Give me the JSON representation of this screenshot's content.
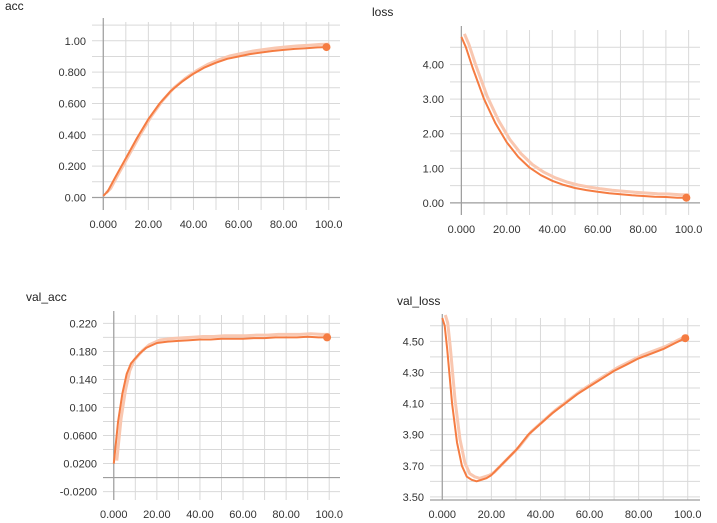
{
  "colors": {
    "line": "#f57c42",
    "raw": "#f9c7b0",
    "grid": "#d9d9d9",
    "axis": "#9e9e9e"
  },
  "chart_data": [
    {
      "type": "line",
      "title": "acc",
      "xlim": [
        -5,
        105
      ],
      "ylim": [
        -0.08,
        1.12
      ],
      "xticks": [
        0,
        20,
        40,
        60,
        80,
        100
      ],
      "xtick_labels": [
        "0.000",
        "20.00",
        "40.00",
        "60.00",
        "80.00",
        "100.0"
      ],
      "yticks": [
        0,
        0.2,
        0.4,
        0.6,
        0.8,
        1.0
      ],
      "ytick_labels": [
        "0.00",
        "0.200",
        "0.400",
        "0.600",
        "0.800",
        "1.00"
      ],
      "grid": true,
      "series": [
        {
          "x": [
            0,
            2,
            5,
            10,
            15,
            20,
            25,
            30,
            35,
            40,
            45,
            50,
            55,
            60,
            65,
            70,
            75,
            80,
            85,
            90,
            95,
            99
          ],
          "y": [
            0.01,
            0.04,
            0.12,
            0.25,
            0.38,
            0.5,
            0.6,
            0.68,
            0.74,
            0.79,
            0.83,
            0.86,
            0.885,
            0.9,
            0.915,
            0.925,
            0.935,
            0.942,
            0.948,
            0.953,
            0.958,
            0.96
          ]
        }
      ]
    },
    {
      "type": "line",
      "title": "loss",
      "xlim": [
        -5,
        105
      ],
      "ylim": [
        -0.35,
        5.0
      ],
      "xticks": [
        0,
        20,
        40,
        60,
        80,
        100
      ],
      "xtick_labels": [
        "0.000",
        "20.00",
        "40.00",
        "60.00",
        "80.00",
        "100.0"
      ],
      "yticks": [
        0,
        1,
        2,
        3,
        4
      ],
      "ytick_labels": [
        "0.00",
        "1.00",
        "2.00",
        "3.00",
        "4.00"
      ],
      "grid": true,
      "series": [
        {
          "x": [
            0,
            2,
            5,
            10,
            15,
            20,
            25,
            30,
            35,
            40,
            45,
            50,
            55,
            60,
            65,
            70,
            75,
            80,
            85,
            90,
            95,
            99
          ],
          "y": [
            4.8,
            4.5,
            3.9,
            3.0,
            2.3,
            1.75,
            1.33,
            1.02,
            0.8,
            0.64,
            0.52,
            0.43,
            0.37,
            0.32,
            0.28,
            0.25,
            0.22,
            0.2,
            0.18,
            0.17,
            0.15,
            0.15
          ]
        }
      ]
    },
    {
      "type": "line",
      "title": "val_acc",
      "xlim": [
        -5,
        105
      ],
      "ylim": [
        -0.032,
        0.232
      ],
      "xticks": [
        0,
        20,
        40,
        60,
        80,
        100
      ],
      "xtick_labels": [
        "0.000",
        "20.00",
        "40.00",
        "60.00",
        "80.00",
        "100.0"
      ],
      "yticks": [
        -0.02,
        0.02,
        0.06,
        0.1,
        0.14,
        0.18,
        0.22
      ],
      "ytick_labels": [
        "-0.0200",
        "0.0200",
        "0.0600",
        "0.100",
        "0.140",
        "0.180",
        "0.220"
      ],
      "grid": true,
      "series": [
        {
          "x": [
            0,
            2,
            4,
            6,
            8,
            10,
            12,
            15,
            20,
            25,
            30,
            35,
            40,
            45,
            50,
            55,
            60,
            65,
            70,
            75,
            80,
            85,
            90,
            95,
            99
          ],
          "y": [
            0.02,
            0.08,
            0.12,
            0.148,
            0.163,
            0.17,
            0.177,
            0.185,
            0.192,
            0.194,
            0.195,
            0.196,
            0.197,
            0.197,
            0.198,
            0.198,
            0.198,
            0.199,
            0.199,
            0.2,
            0.2,
            0.2,
            0.201,
            0.2,
            0.2
          ]
        }
      ]
    },
    {
      "type": "line",
      "title": "val_loss",
      "xlim": [
        -5,
        105
      ],
      "ylim": [
        3.48,
        4.65
      ],
      "xticks": [
        0,
        20,
        40,
        60,
        80,
        100
      ],
      "xtick_labels": [
        "0.000",
        "20.00",
        "40.00",
        "60.00",
        "80.00",
        "100.0"
      ],
      "yticks": [
        3.5,
        3.7,
        3.9,
        4.1,
        4.3,
        4.5
      ],
      "ytick_labels": [
        "3.50",
        "3.70",
        "3.90",
        "4.10",
        "4.30",
        "4.50"
      ],
      "grid": true,
      "series": [
        {
          "x": [
            0,
            1,
            2,
            4,
            6,
            8,
            10,
            12,
            14,
            16,
            18,
            20,
            25,
            30,
            35,
            40,
            45,
            50,
            55,
            60,
            65,
            70,
            75,
            80,
            85,
            90,
            95,
            99
          ],
          "y": [
            4.65,
            4.6,
            4.45,
            4.1,
            3.85,
            3.7,
            3.63,
            3.61,
            3.6,
            3.61,
            3.62,
            3.64,
            3.72,
            3.8,
            3.9,
            3.97,
            4.04,
            4.1,
            4.16,
            4.21,
            4.26,
            4.31,
            4.35,
            4.39,
            4.42,
            4.45,
            4.49,
            4.52
          ]
        }
      ]
    }
  ]
}
